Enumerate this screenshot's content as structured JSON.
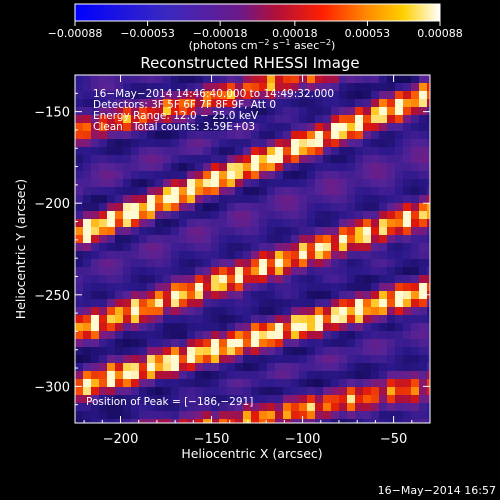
{
  "chart_data": {
    "type": "heatmap",
    "title": "Reconstructed RHESSI Image",
    "xlabel": "Heliocentric X (arcsec)",
    "ylabel": "Heliocentric Y (arcsec)",
    "xlim": [
      -225,
      -30
    ],
    "ylim": [
      -320,
      -130
    ],
    "x_ticks": [
      -200,
      -150,
      -100,
      -50
    ],
    "y_ticks": [
      -150,
      -200,
      -250,
      -300
    ],
    "x_tick_labels": [
      "−200",
      "−150",
      "−100",
      "−50"
    ],
    "y_tick_labels": [
      "−150",
      "−200",
      "−250",
      "−300"
    ],
    "colorbar": {
      "range": [
        -0.00088,
        0.00088
      ],
      "ticks": [
        -0.00088,
        -0.00053,
        -0.00018,
        0.00018,
        0.00053,
        0.00088
      ],
      "tick_labels": [
        "−0.00088",
        "−0.00053",
        "−0.00018",
        "0.00018",
        "0.00053",
        "0.00088"
      ],
      "label_parts": [
        "(photons cm",
        "−2",
        " s",
        "−1",
        " asec",
        "−2",
        ")"
      ]
    },
    "annotations": [
      "16−May−2014 14:46:40.000 to 14:49:32.000",
      "Detectors: 3F 5F 6F 7F 8F 9F, Att 0",
      "Energy Range: 12.0 − 25.0 keV",
      "Clean",
      "Total counts: 3.59E+03"
    ],
    "peak_label": "Position of Peak = [−186,−291]",
    "peak": [
      -186,
      -291
    ],
    "timestamp": "16−May−2014 16:57",
    "fringes": [
      {
        "x0": -225,
        "y0": -160,
        "x1": -30,
        "y1": -115,
        "strength": 0.55
      },
      {
        "x0": -225,
        "y0": -218,
        "x1": -30,
        "y1": -140,
        "strength": 0.95
      },
      {
        "x0": -225,
        "y0": -270,
        "x1": -30,
        "y1": -205,
        "strength": 0.85
      },
      {
        "x0": -225,
        "y0": -300,
        "x1": -30,
        "y1": -248,
        "strength": 0.9
      },
      {
        "x0": -225,
        "y0": -335,
        "x1": -30,
        "y1": -300,
        "strength": 0.6
      }
    ]
  }
}
